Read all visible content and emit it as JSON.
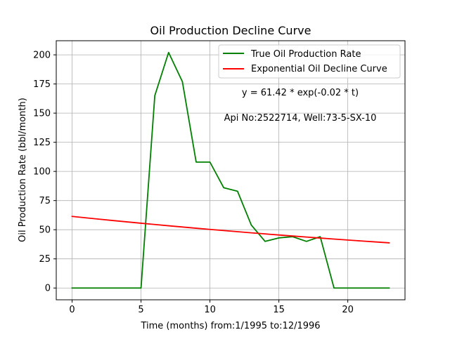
{
  "chart_data": {
    "type": "line",
    "title": "Oil Production Decline Curve",
    "xlabel": "Time (months) from:1/1995 to:12/1996",
    "ylabel": "Oil Production Rate (bbl/month)",
    "xlim": [
      -1.15,
      24.15
    ],
    "ylim": [
      -10.1,
      212.1
    ],
    "xticks": [
      0,
      5,
      10,
      15,
      20
    ],
    "yticks": [
      0,
      25,
      50,
      75,
      100,
      125,
      150,
      175,
      200
    ],
    "grid": true,
    "legend_position": "upper right",
    "x": [
      0,
      1,
      2,
      3,
      4,
      5,
      6,
      7,
      8,
      9,
      10,
      11,
      12,
      13,
      14,
      15,
      16,
      17,
      18,
      19,
      20,
      21,
      22,
      23
    ],
    "series": [
      {
        "name": "True Oil Production Rate",
        "color": "#008000",
        "values": [
          0,
          0,
          0,
          0,
          0,
          0,
          165,
          202,
          177,
          108,
          108,
          86,
          83,
          54,
          40,
          43,
          44,
          40,
          44,
          0,
          0,
          0,
          0,
          0
        ]
      },
      {
        "name": "Exponential Oil Decline Curve",
        "color": "#ff0000",
        "values": [
          61.42,
          60.2,
          59.0,
          57.84,
          56.69,
          55.57,
          54.47,
          53.39,
          52.33,
          51.29,
          50.28,
          49.28,
          48.3,
          47.35,
          46.41,
          45.49,
          44.59,
          43.7,
          42.84,
          41.99,
          41.16,
          40.34,
          39.54,
          38.76
        ]
      }
    ],
    "annotations": [
      "y = 61.42 * exp(-0.02 * t)",
      "Api No:2522714, Well:73-5-SX-10"
    ]
  }
}
